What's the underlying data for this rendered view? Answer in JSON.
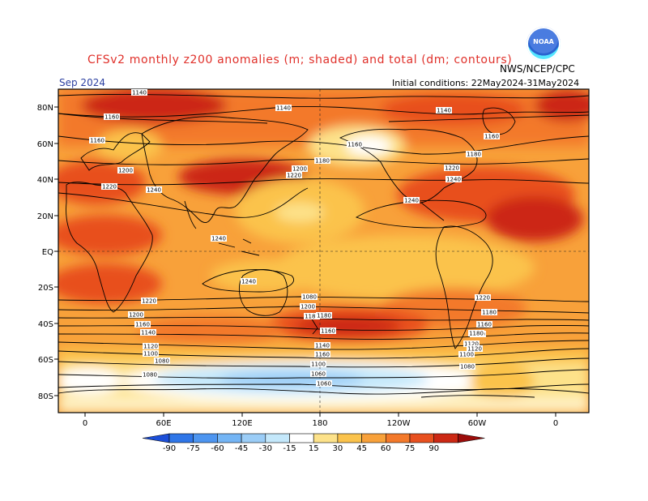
{
  "header": {
    "title": "CFSv2 monthly z200 anomalies (m; shaded) and total (dm; contours)",
    "month": "Sep 2024",
    "initial_conditions": "Initial conditions: 22May2024-31May2024",
    "agency": "NWS/NCEP/CPC",
    "logo_text": "NOAA"
  },
  "axes": {
    "lat_labels": [
      "80N",
      "60N",
      "40N",
      "20N",
      "EQ",
      "20S",
      "40S",
      "60S",
      "80S"
    ],
    "lon_labels": [
      "0",
      "60E",
      "120E",
      "180",
      "120W",
      "60W",
      "0"
    ]
  },
  "colorbar": {
    "ticks": [
      "-90",
      "-75",
      "-60",
      "-45",
      "-30",
      "-15",
      "15",
      "30",
      "45",
      "60",
      "75",
      "90"
    ],
    "colors": [
      "#1c4fd8",
      "#2f76e8",
      "#4d95f0",
      "#74b5f5",
      "#9bcdf7",
      "#c4e8fb",
      "#ffffff",
      "#fde28a",
      "#fbc34c",
      "#f8a13a",
      "#f3792a",
      "#e8501f",
      "#cc2814",
      "#9c0c0a"
    ]
  },
  "contours": {
    "labels": [
      "1140",
      "1140",
      "1140",
      "1160",
      "1160",
      "1160",
      "1160",
      "1180",
      "1180",
      "1200",
      "1200",
      "1220",
      "1220",
      "1220",
      "1240",
      "1240",
      "1240",
      "1240",
      "1220",
      "1220",
      "1200",
      "1200",
      "1180",
      "1180",
      "1160",
      "1160",
      "1140",
      "1140",
      "1120",
      "1120",
      "1100",
      "1100",
      "1080",
      "1080",
      "1060",
      "1060",
      "1080",
      "1240",
      "1160",
      "1140",
      "1100",
      "1080",
      "1180",
      "1160",
      "1120",
      "1180"
    ]
  },
  "colors": {
    "title": "#e0302a",
    "month": "#2a3fa0"
  }
}
